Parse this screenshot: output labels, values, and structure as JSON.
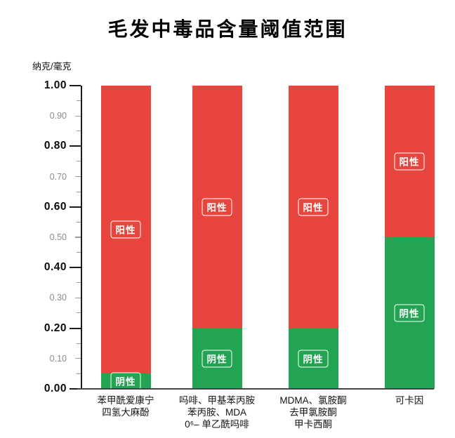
{
  "title": "毛发中毒品含量阈值范围",
  "y_unit": "纳克/毫克",
  "colors": {
    "positive_red": "#e9453f",
    "negative_green": "#23a452",
    "axis": "#1c1c1c",
    "baseline": "#454545",
    "major_tick_label": "#0a0a0a",
    "mid_tick_label": "#8b8b8b",
    "segment_label_text": "#ffffff",
    "segment_label_border": "#ffffff"
  },
  "chart_data": {
    "type": "bar",
    "stacked": true,
    "title": "毛发中毒品含量阈值范围",
    "ylabel": "纳克/毫克",
    "xlabel": "",
    "ylim": [
      0,
      1.0
    ],
    "grid": false,
    "legend_position": "none",
    "y_ticks_major": [
      "0.00",
      "0.20",
      "0.40",
      "0.60",
      "0.80",
      "1.00"
    ],
    "y_ticks_mid": [
      "0.10",
      "0.30",
      "0.50",
      "0.70",
      "0.90"
    ],
    "y_tick_minor_step": 0.05,
    "categories": [
      [
        "苯甲酰爱康宁",
        "四氢大麻酚"
      ],
      [
        "吗啡、甲基苯丙胺",
        "苯丙胺、MDA",
        "0⁶– 单乙酰吗啡"
      ],
      [
        "MDMA、氯胺酮",
        "去甲氯胺酮",
        "甲卡西酮"
      ],
      [
        "可卡因"
      ]
    ],
    "series": [
      {
        "name": "阴性",
        "role": "negative",
        "color": "#23a452",
        "values": [
          0.05,
          0.2,
          0.2,
          0.5
        ]
      },
      {
        "name": "阳性",
        "role": "positive",
        "color": "#e9453f",
        "values": [
          0.95,
          0.8,
          0.8,
          0.5
        ]
      }
    ]
  }
}
